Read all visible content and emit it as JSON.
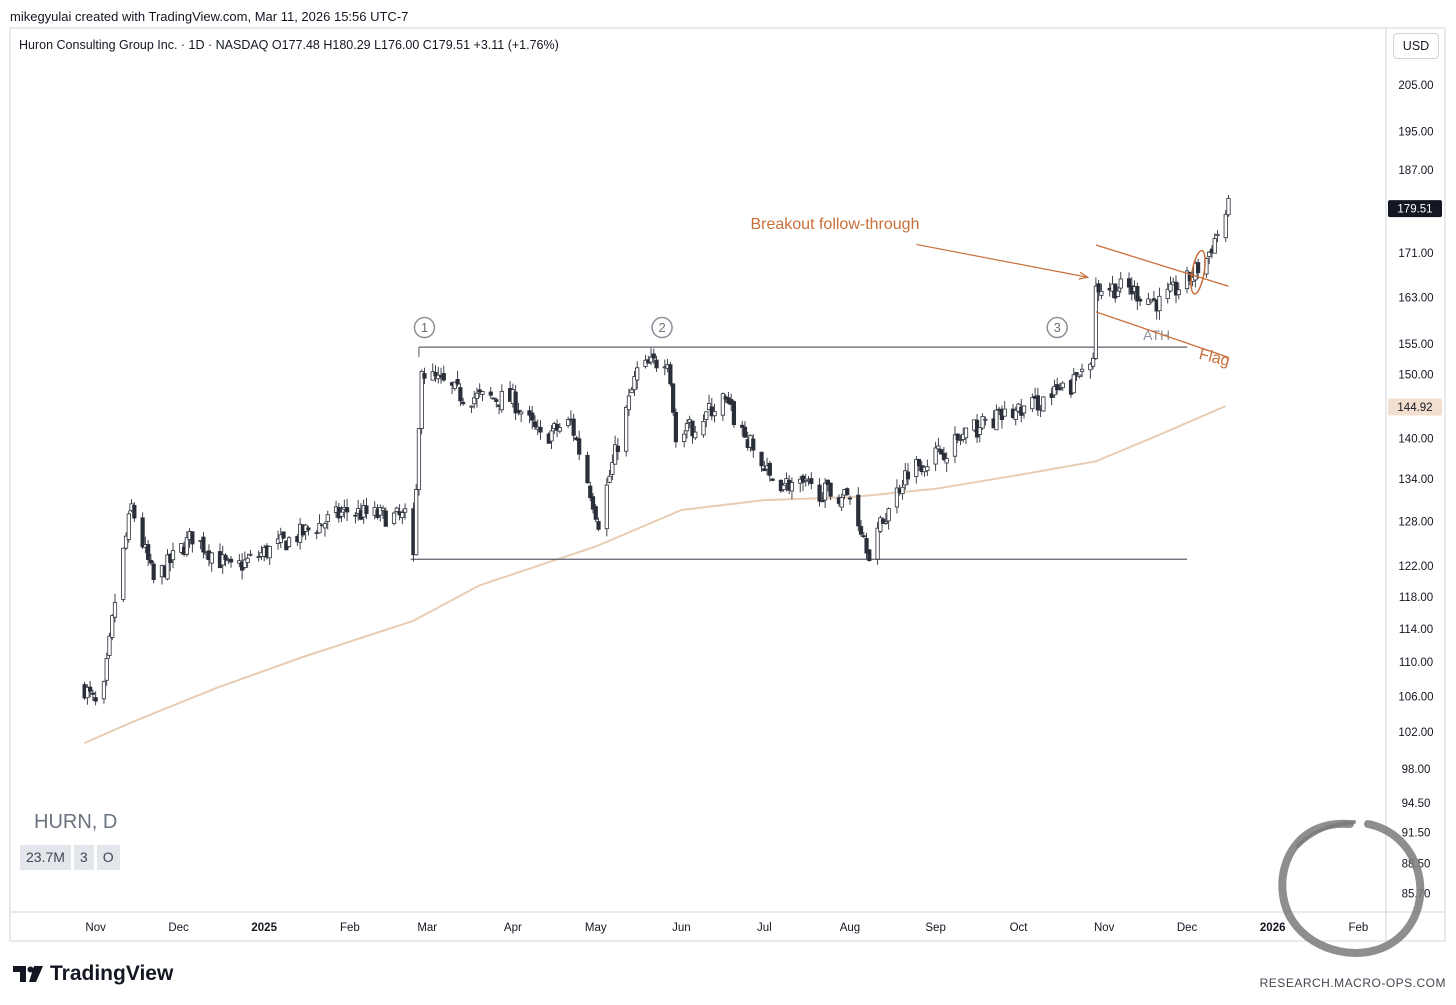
{
  "header": {
    "credit": "mikegyulai created with TradingView.com, Mar 11, 2026 15:56 UTC-7",
    "title": "Huron Consulting Group Inc. · 1D · NASDAQ",
    "open": "O177.48",
    "high": "H180.29",
    "low": "L176.00",
    "close": "C179.51",
    "change": "+3.11 (+1.76%)"
  },
  "currency_label": "USD",
  "watermark": {
    "symbol": "HURN, D",
    "pills": [
      "23.7M",
      "3",
      "O"
    ]
  },
  "brand": {
    "logo_text": "TradingView",
    "footer": "RESEARCH.MACRO-OPS.COM"
  },
  "colors": {
    "up_candle": "#ffffff",
    "down_candle": "#2a2e39",
    "wick": "#2a2e39",
    "moving_average": "#e8cdb5",
    "annotation": "#c96f3a",
    "range_lines": "#5d606b",
    "price_badge": "#131722",
    "ma_badge": "#f2dfcf"
  },
  "chart_data": {
    "type": "candlestick",
    "symbol": "HURN",
    "interval": "1D",
    "x_ticks": [
      "Nov",
      "Dec",
      "2025",
      "Feb",
      "Mar",
      "Apr",
      "May",
      "Jun",
      "Jul",
      "Aug",
      "Sep",
      "Oct",
      "Nov",
      "Dec",
      "2026",
      "Feb"
    ],
    "y_ticks": [
      205.0,
      195.0,
      187.0,
      171.0,
      163.0,
      155.0,
      150.0,
      140.0,
      134.0,
      128.0,
      122.0,
      118.0,
      114.0,
      110.0,
      106.0,
      102.0,
      98.0,
      94.5,
      91.5,
      88.5,
      85.7
    ],
    "y_scale": "log",
    "ylim": [
      84.0,
      218.0
    ],
    "last_price": "179.51",
    "ma_value": "144.92",
    "moving_average_200": {
      "x": [
        "2024-10-28",
        "2024-11-15",
        "2024-12-15",
        "2025-01-15",
        "2025-02-24",
        "2025-03-20",
        "2025-05-01",
        "2025-06-01",
        "2025-07-01",
        "2025-08-01",
        "2025-09-01",
        "2025-10-01",
        "2025-10-29",
        "2025-11-20",
        "2025-12-15"
      ],
      "y": [
        100.8,
        103.2,
        107.0,
        110.6,
        115.0,
        119.5,
        124.6,
        129.6,
        131.0,
        131.4,
        132.6,
        134.6,
        136.6,
        140.4,
        145.0
      ]
    },
    "range_lines": [
      {
        "label": "ATH",
        "y": 154.5,
        "from": "2025-02-26",
        "to": "2025-12-01"
      },
      {
        "label": "",
        "y": 122.9,
        "from": "2025-02-23",
        "to": "2025-12-01"
      }
    ],
    "markers": [
      {
        "label": "1",
        "x": "2025-02-28",
        "y": 157.8
      },
      {
        "label": "2",
        "x": "2025-05-25",
        "y": 157.8
      },
      {
        "label": "3",
        "x": "2025-10-15",
        "y": 157.8
      }
    ],
    "annotations": {
      "breakout_text": "Breakout follow-through",
      "flag_text": "Flag",
      "ath_text": "ATH"
    },
    "flag_channel": [
      {
        "x1": "2025-10-29",
        "y1": 172.5,
        "x2": "2025-12-16",
        "y2": 165.0
      },
      {
        "x1": "2025-10-29",
        "y1": 160.5,
        "x2": "2025-12-16",
        "y2": 152.8
      }
    ],
    "ohlc_anchors": {
      "x": [
        "2024-10-28",
        "2024-11-03",
        "2024-11-08",
        "2024-11-14",
        "2024-11-22",
        "2024-12-06",
        "2024-12-20",
        "2025-01-10",
        "2025-01-31",
        "2025-02-07",
        "2025-02-21",
        "2025-02-24",
        "2025-02-27",
        "2025-03-14",
        "2025-04-01",
        "2025-04-11",
        "2025-04-22",
        "2025-05-02",
        "2025-05-16",
        "2025-05-27",
        "2025-05-30",
        "2025-06-16",
        "2025-07-03",
        "2025-07-24",
        "2025-08-01",
        "2025-08-08",
        "2025-08-22",
        "2025-09-05",
        "2025-09-19",
        "2025-10-03",
        "2025-10-20",
        "2025-10-28",
        "2025-10-29",
        "2025-11-10",
        "2025-11-21",
        "2025-12-01",
        "2025-12-08",
        "2025-12-16"
      ],
      "close": [
        107.0,
        104.0,
        117.5,
        130.0,
        120.0,
        126.0,
        121.5,
        125.5,
        129.5,
        129.0,
        128.5,
        123.5,
        150.5,
        146.5,
        146.0,
        140.0,
        142.5,
        128.0,
        150.5,
        153.0,
        139.5,
        146.0,
        134.0,
        132.0,
        131.5,
        124.0,
        135.5,
        138.5,
        142.5,
        144.5,
        148.0,
        154.0,
        165.0,
        164.5,
        162.0,
        166.0,
        170.0,
        179.51
      ]
    }
  }
}
